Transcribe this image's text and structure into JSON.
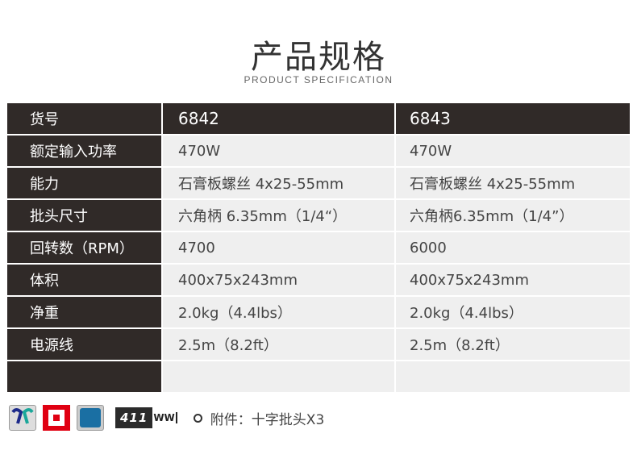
{
  "header": {
    "title": "产品规格",
    "subtitle": "PRODUCT SPECIFICATION"
  },
  "table": {
    "rows": [
      [
        "货号",
        "6842",
        "6843"
      ],
      [
        "额定输入功率",
        "470W",
        "470W"
      ],
      [
        "能力",
        "石膏板螺丝 4x25-55mm",
        "石膏板螺丝 4x25-55mm"
      ],
      [
        "批头尺寸",
        "六角柄 6.35mm（1/4“）",
        "六角柄6.35mm（1/4”）"
      ],
      [
        "回转数（RPM）",
        "4700",
        "6000"
      ],
      [
        "体积",
        "400x75x243mm",
        "400x75x243mm"
      ],
      [
        "净重",
        "2.0kg（4.4lbs）",
        "2.0kg（4.4lbs）"
      ],
      [
        "电源线",
        "2.5m（8.2ft）",
        "2.5m（8.2ft）"
      ],
      [
        "",
        "",
        ""
      ]
    ]
  },
  "footer": {
    "icons": [
      "reversible-icon",
      "double-insulation-icon",
      "variable-speed-icon"
    ],
    "badge_number": "411",
    "accessory": "附件：十字批头X3"
  },
  "colors": {
    "dark": "#302a28",
    "light": "#efefef",
    "red": "#e00012",
    "blue": "#1a6fa3"
  }
}
